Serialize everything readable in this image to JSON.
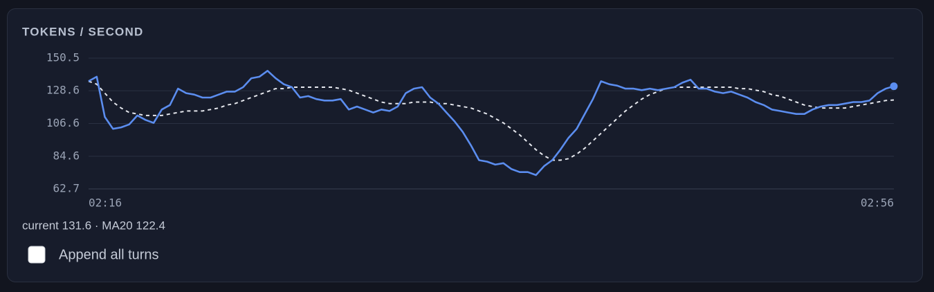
{
  "chart_data": {
    "type": "line",
    "title": "TOKENS / SECOND",
    "categories": [
      "02:16",
      null,
      null,
      null,
      null,
      null,
      null,
      null,
      null,
      null,
      null,
      null,
      null,
      null,
      null,
      null,
      null,
      null,
      null,
      null,
      null,
      null,
      null,
      null,
      null,
      null,
      null,
      null,
      null,
      null,
      null,
      null,
      null,
      null,
      null,
      null,
      null,
      null,
      null,
      null,
      null,
      null,
      null,
      null,
      null,
      null,
      null,
      null,
      null,
      null,
      null,
      null,
      null,
      null,
      null,
      null,
      null,
      null,
      null,
      null,
      null,
      null,
      null,
      null,
      null,
      null,
      null,
      null,
      null,
      null,
      null,
      null,
      null,
      null,
      null,
      null,
      null,
      null,
      null,
      null,
      null,
      null,
      null,
      null,
      null,
      null,
      null,
      null,
      null,
      null,
      null,
      null,
      null,
      null,
      null,
      null,
      null,
      null,
      null,
      "02:56"
    ],
    "series": [
      {
        "color": "#5b8def",
        "values": [
          135,
          138,
          111,
          103,
          104,
          106,
          112,
          109,
          107,
          116,
          119,
          130,
          127,
          126,
          124,
          124,
          126,
          128,
          128,
          131,
          137,
          138,
          142,
          137,
          133,
          131,
          124,
          125,
          123,
          122,
          122,
          123,
          116,
          118,
          116,
          114,
          116,
          115,
          118,
          127,
          130,
          131,
          124,
          120,
          114,
          108,
          101,
          92,
          82,
          81,
          79,
          80,
          76,
          74,
          74,
          72,
          78,
          82,
          89,
          97,
          103,
          113,
          123,
          135,
          133,
          132,
          130,
          130,
          129,
          130,
          129,
          130,
          131,
          134,
          136,
          130,
          130,
          128,
          127,
          128,
          126,
          124,
          121,
          119,
          116,
          115,
          114,
          113,
          113,
          116,
          118,
          119,
          119,
          120,
          121,
          121,
          122,
          127,
          130,
          131.6
        ]
      },
      {
        "color": "#e6e8ee",
        "dashed": true,
        "values": [
          135,
          133,
          127,
          121,
          117,
          114,
          113,
          112,
          112,
          112,
          113,
          114,
          115,
          115,
          115,
          116,
          117,
          119,
          120,
          122,
          124,
          126,
          128,
          130,
          130,
          131,
          131,
          131,
          131,
          131,
          131,
          130,
          129,
          127,
          125,
          123,
          121,
          120,
          120,
          120,
          121,
          121,
          121,
          120,
          120,
          119,
          118,
          117,
          115,
          113,
          110,
          107,
          103,
          99,
          94,
          89,
          85,
          82,
          82,
          83,
          86,
          90,
          95,
          100,
          105,
          110,
          115,
          119,
          123,
          126,
          128,
          130,
          131,
          131,
          131,
          131,
          131,
          131,
          131,
          131,
          130,
          130,
          129,
          128,
          126,
          125,
          123,
          121,
          119,
          118,
          117,
          117,
          117,
          117,
          118,
          119,
          120,
          121,
          122,
          122.4
        ]
      }
    ],
    "ylim": [
      62.7,
      150.5
    ],
    "yticks": [
      150.5,
      128.6,
      106.6,
      84.6,
      62.7
    ],
    "grid": true
  },
  "status": "current 131.6 · MA20 122.4",
  "checkbox_label": "Append all turns"
}
